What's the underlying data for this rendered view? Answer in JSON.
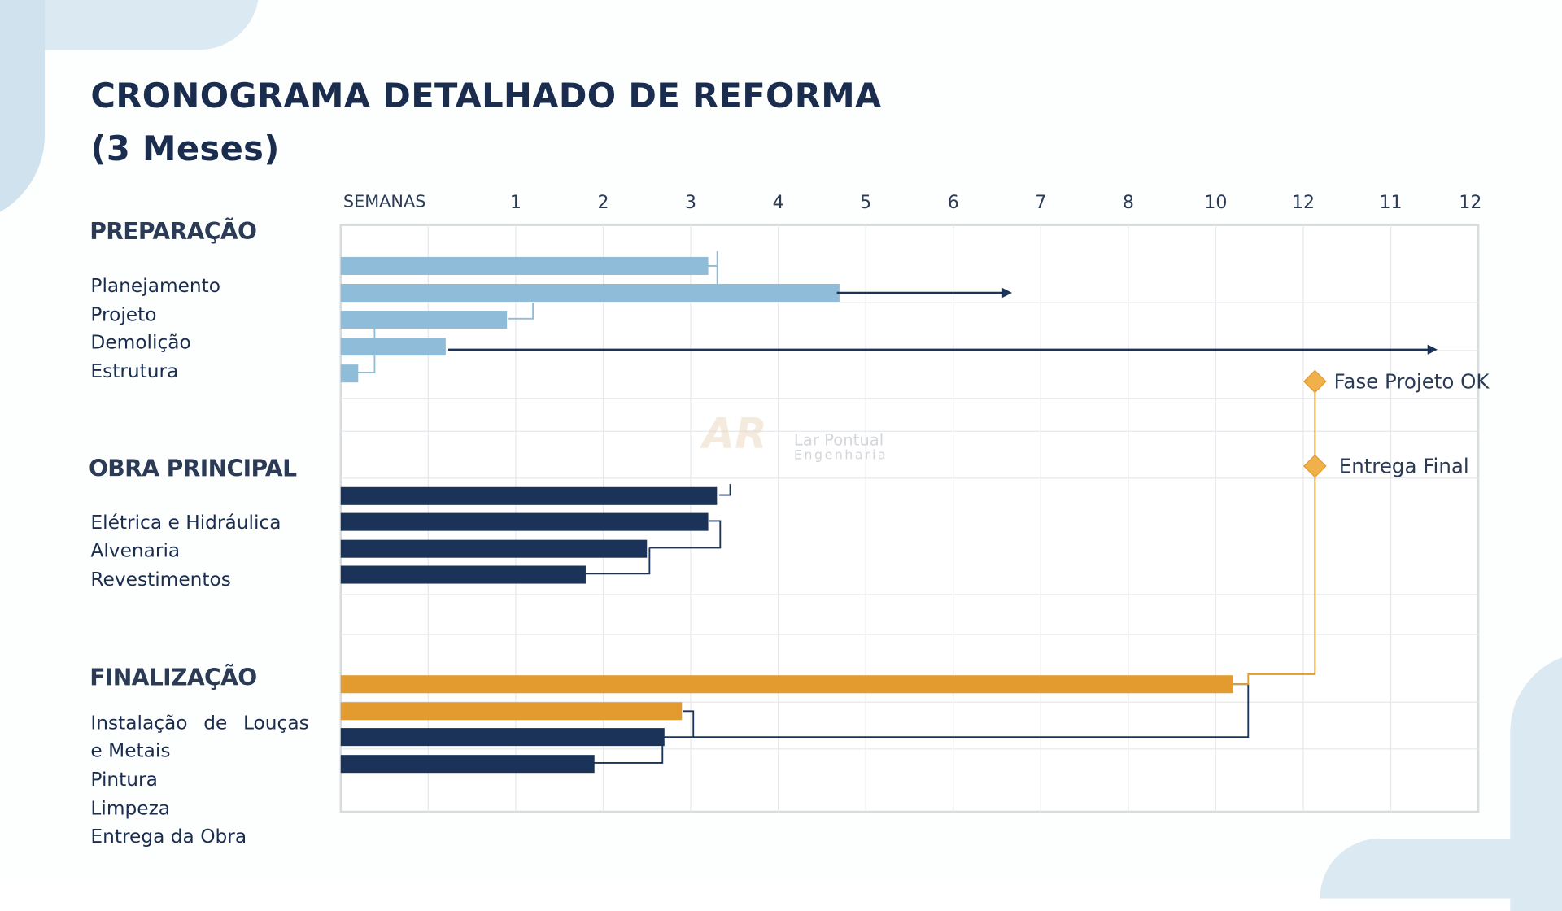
{
  "title_line1": "CRONOGRAMA DETALHADO DE REFORMA",
  "title_line2": "(3 Meses)",
  "watermark": {
    "logo": "AR",
    "line1": "Lar Pontual",
    "line2": "Engenharia"
  },
  "colors": {
    "preparacao": "#8fbcd9",
    "obra": "#1b3358",
    "finalizacao": "#e39b2f",
    "milestone": "#f0b04a",
    "grid": "#e6e8eb"
  },
  "sections": [
    {
      "label": "PREPARAÇÃO",
      "items": [
        "Planejamento",
        "Projeto",
        "Demolição",
        "Estrutura"
      ]
    },
    {
      "label": "OBRA PRINCIPAL",
      "items": [
        "Elétrica e Hidráulica",
        "Alvenaria",
        "Revestimentos"
      ]
    },
    {
      "label": "FINALIZAÇÃO",
      "items": [
        "Instalação  de  Louças",
        "e Metais",
        "Pintura",
        "Limpeza",
        "Entrega da Obra"
      ]
    }
  ],
  "chart_data": {
    "type": "bar",
    "orientation": "horizontal",
    "axis_label": "SEMANAS",
    "tick_labels": [
      "1",
      "2",
      "3",
      "4",
      "5",
      "6",
      "7",
      "8",
      "10",
      "12",
      "11",
      "12"
    ],
    "grid": true,
    "bars": [
      {
        "group": "preparacao",
        "start": 0,
        "end": 4.2,
        "color": "#8fbcd9"
      },
      {
        "group": "preparacao",
        "start": 0,
        "end": 5.7,
        "color": "#8fbcd9"
      },
      {
        "group": "preparacao",
        "start": 0,
        "end": 1.9,
        "color": "#8fbcd9"
      },
      {
        "group": "preparacao",
        "start": 0,
        "end": 1.2,
        "color": "#8fbcd9"
      },
      {
        "group": "preparacao",
        "start": 0,
        "end": 0.2,
        "color": "#8fbcd9"
      },
      {
        "group": "obra",
        "start": 0,
        "end": 4.3,
        "color": "#1b3358"
      },
      {
        "group": "obra",
        "start": 0,
        "end": 4.2,
        "color": "#1b3358"
      },
      {
        "group": "obra",
        "start": 0,
        "end": 3.5,
        "color": "#1b3358"
      },
      {
        "group": "obra",
        "start": 0,
        "end": 2.8,
        "color": "#1b3358"
      },
      {
        "group": "finalizacao",
        "start": 0,
        "end": 10.2,
        "color": "#e39b2f"
      },
      {
        "group": "finalizacao",
        "start": 0,
        "end": 3.9,
        "color": "#e39b2f"
      },
      {
        "group": "finalizacao",
        "start": 0,
        "end": 3.7,
        "color": "#1b3358"
      },
      {
        "group": "finalizacao",
        "start": 0,
        "end": 2.9,
        "color": "#1b3358"
      }
    ],
    "milestones": [
      {
        "label": "Fase Projeto OK",
        "at": 11.2
      },
      {
        "label": "Entrega Final",
        "at": 11.2
      }
    ]
  }
}
